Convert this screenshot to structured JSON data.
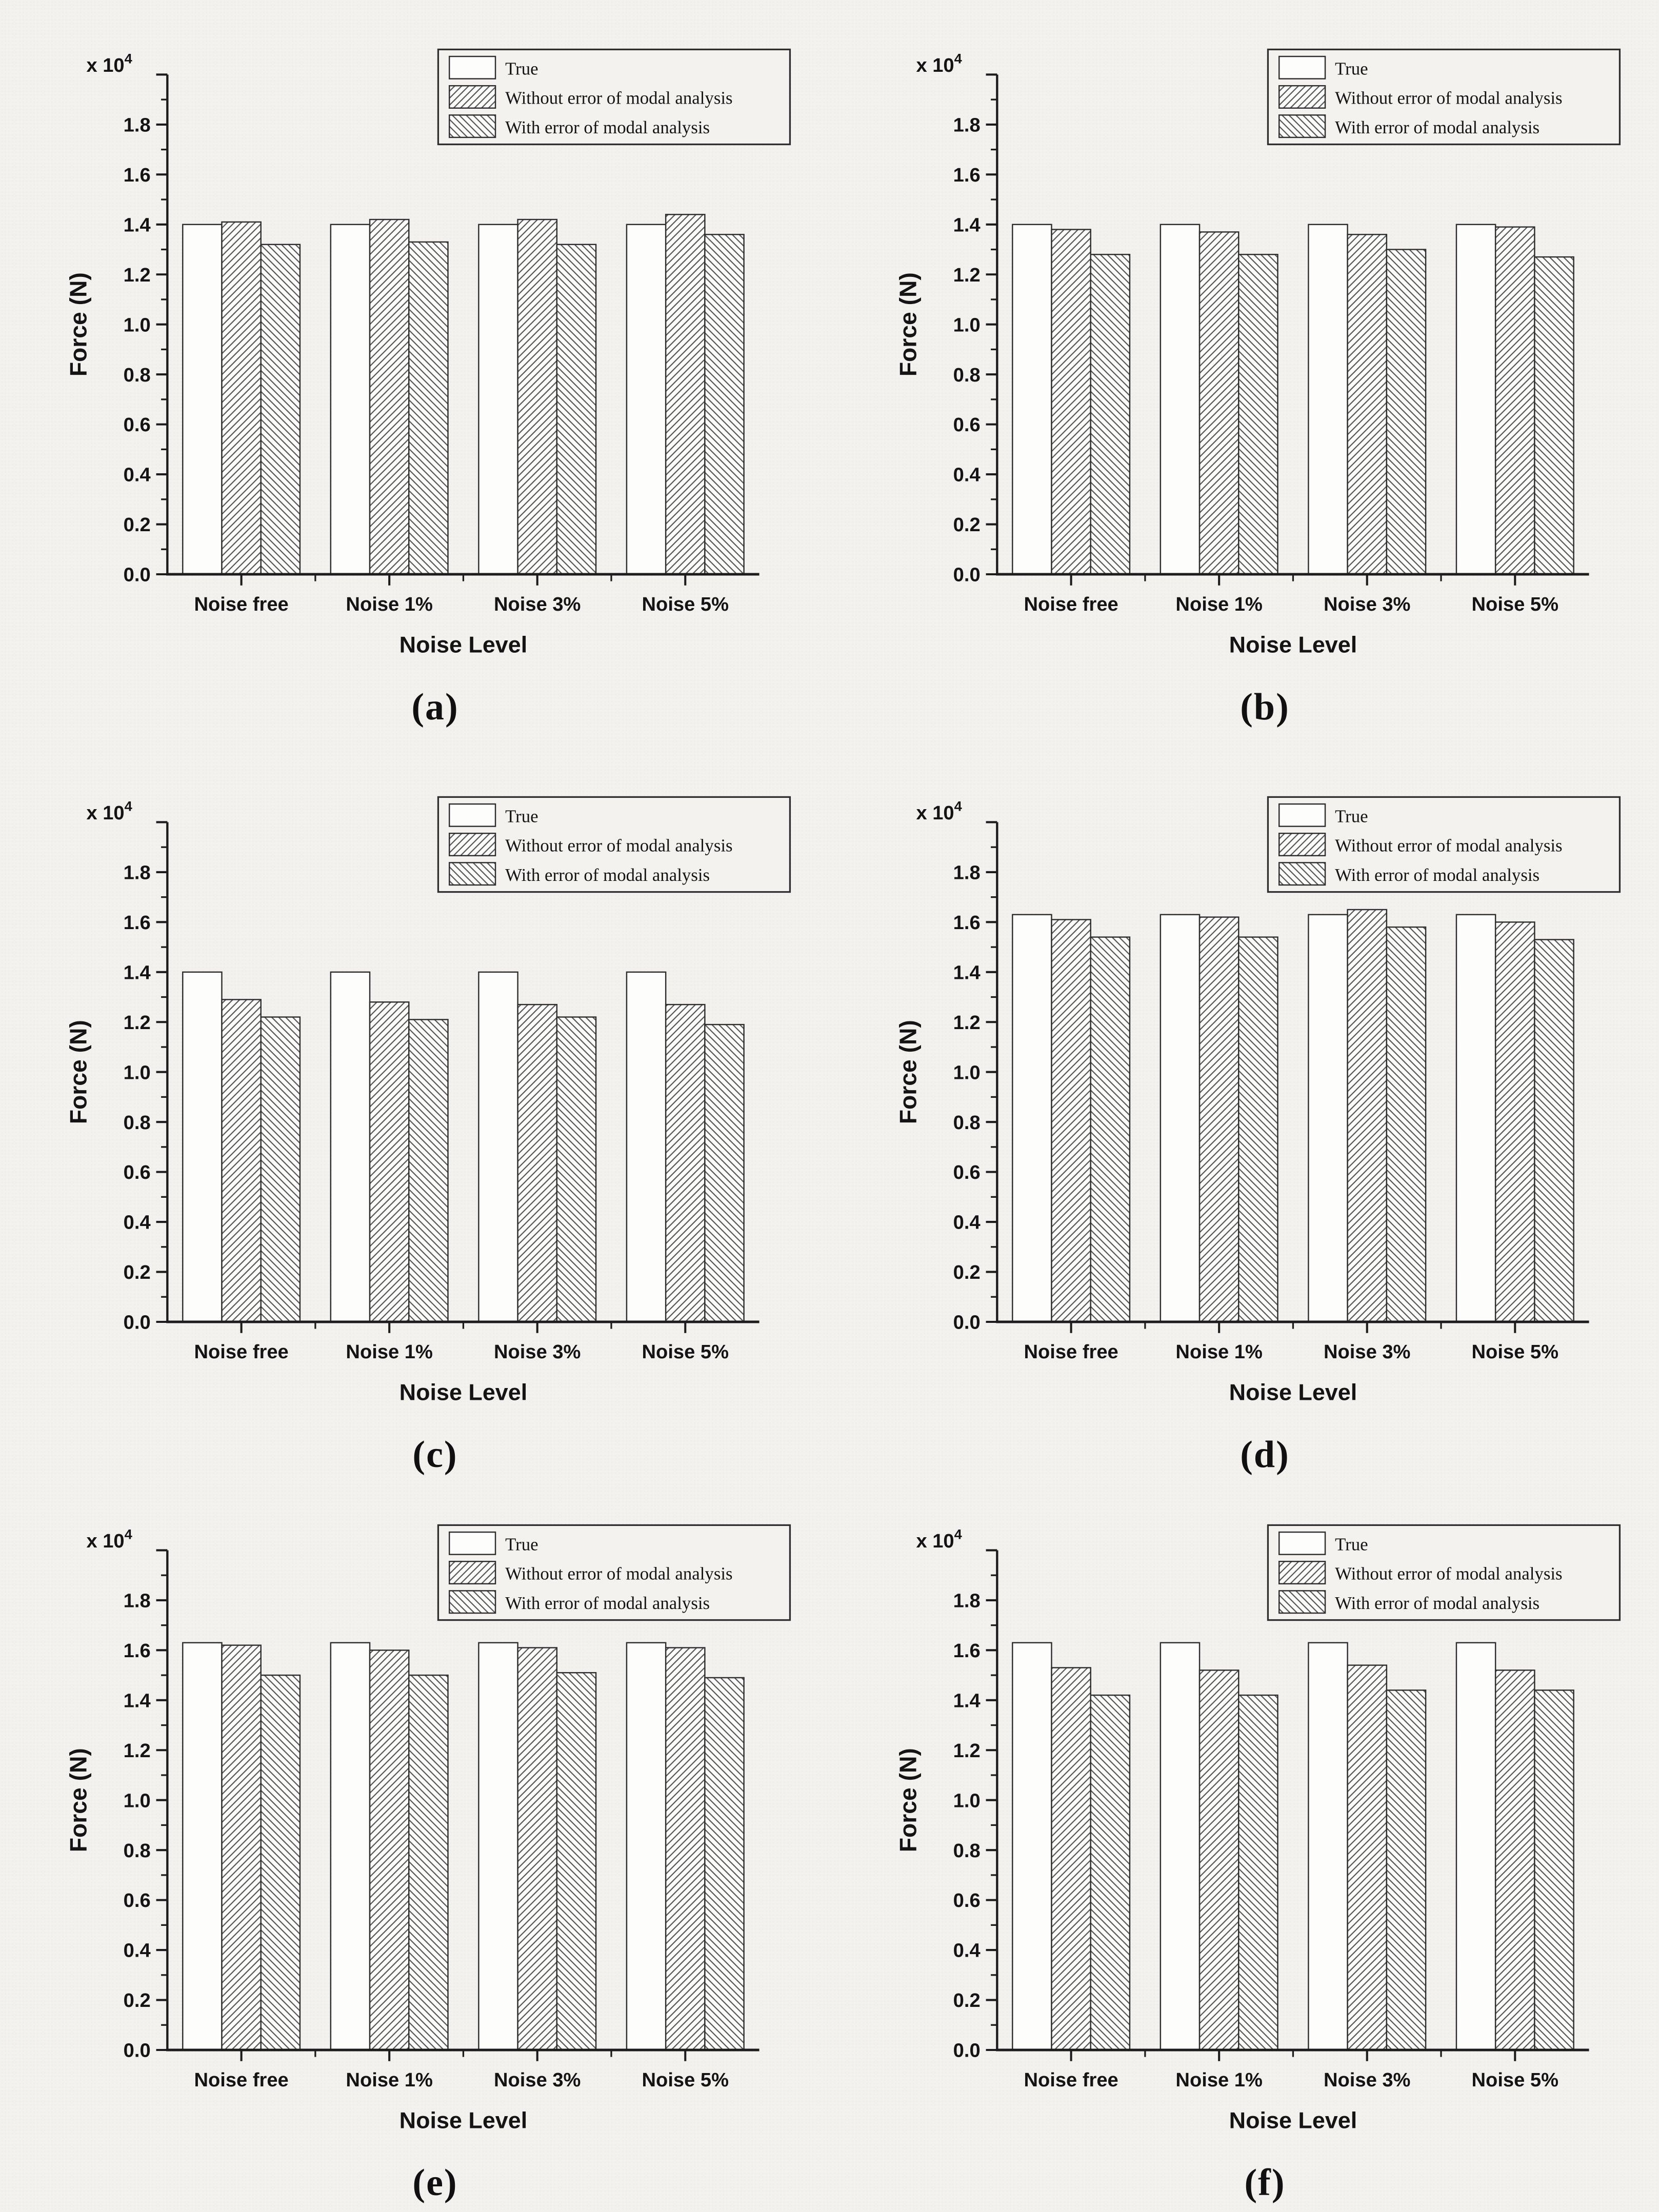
{
  "page": {
    "colors": {
      "background": "#f2f1ee",
      "axis": "#1c1c1c",
      "bar_fill": "#fdfdfc",
      "bar_stroke": "#2e2e2e",
      "hatch": "#555555",
      "legend_fill": "#f3f2ef",
      "text": "#141414"
    }
  },
  "chart_data": [
    {
      "id": "a",
      "caption": "(a)",
      "type": "bar",
      "xlabel": "Noise Level",
      "ylabel": "Force (N)",
      "y_multiplier_label": "x 10",
      "y_multiplier_exponent": "4",
      "categories": [
        "Noise free",
        "Noise 1%",
        "Noise 3%",
        "Noise 5%"
      ],
      "series": [
        {
          "name": "True",
          "hatch": "none",
          "values": [
            1.4,
            1.4,
            1.4,
            1.4
          ]
        },
        {
          "name": "Without error of modal analysis",
          "hatch": "forward",
          "values": [
            1.41,
            1.42,
            1.42,
            1.44
          ]
        },
        {
          "name": "With error of modal analysis",
          "hatch": "backward",
          "values": [
            1.32,
            1.33,
            1.32,
            1.36
          ]
        }
      ],
      "ylim": [
        0,
        2.0
      ],
      "ytick_major": 0.2,
      "ytick_minor": 0.1,
      "ytick_labels": [
        "0.0",
        "0.2",
        "0.4",
        "0.6",
        "0.8",
        "1.0",
        "1.2",
        "1.4",
        "1.6",
        "1.8"
      ],
      "legend_position": "top-right",
      "grid": false
    },
    {
      "id": "b",
      "caption": "(b)",
      "type": "bar",
      "xlabel": "Noise Level",
      "ylabel": "Force (N)",
      "y_multiplier_label": "x 10",
      "y_multiplier_exponent": "4",
      "categories": [
        "Noise free",
        "Noise 1%",
        "Noise 3%",
        "Noise 5%"
      ],
      "series": [
        {
          "name": "True",
          "hatch": "none",
          "values": [
            1.4,
            1.4,
            1.4,
            1.4
          ]
        },
        {
          "name": "Without error of modal analysis",
          "hatch": "forward",
          "values": [
            1.38,
            1.37,
            1.36,
            1.39
          ]
        },
        {
          "name": "With error of modal analysis",
          "hatch": "backward",
          "values": [
            1.28,
            1.28,
            1.3,
            1.27
          ]
        }
      ],
      "ylim": [
        0,
        2.0
      ],
      "ytick_major": 0.2,
      "ytick_minor": 0.1,
      "ytick_labels": [
        "0.0",
        "0.2",
        "0.4",
        "0.6",
        "0.8",
        "1.0",
        "1.2",
        "1.4",
        "1.6",
        "1.8"
      ],
      "legend_position": "top-right",
      "grid": false
    },
    {
      "id": "c",
      "caption": "(c)",
      "type": "bar",
      "xlabel": "Noise Level",
      "ylabel": "Force (N)",
      "y_multiplier_label": "x 10",
      "y_multiplier_exponent": "4",
      "categories": [
        "Noise free",
        "Noise 1%",
        "Noise 3%",
        "Noise 5%"
      ],
      "series": [
        {
          "name": "True",
          "hatch": "none",
          "values": [
            1.4,
            1.4,
            1.4,
            1.4
          ]
        },
        {
          "name": "Without error of modal analysis",
          "hatch": "forward",
          "values": [
            1.29,
            1.28,
            1.27,
            1.27
          ]
        },
        {
          "name": "With error of modal analysis",
          "hatch": "backward",
          "values": [
            1.22,
            1.21,
            1.22,
            1.19
          ]
        }
      ],
      "ylim": [
        0,
        2.0
      ],
      "ytick_major": 0.2,
      "ytick_minor": 0.1,
      "ytick_labels": [
        "0.0",
        "0.2",
        "0.4",
        "0.6",
        "0.8",
        "1.0",
        "1.2",
        "1.4",
        "1.6",
        "1.8"
      ],
      "legend_position": "top-right",
      "grid": false
    },
    {
      "id": "d",
      "caption": "(d)",
      "type": "bar",
      "xlabel": "Noise Level",
      "ylabel": "Force (N)",
      "y_multiplier_label": "x 10",
      "y_multiplier_exponent": "4",
      "categories": [
        "Noise free",
        "Noise 1%",
        "Noise 3%",
        "Noise 5%"
      ],
      "series": [
        {
          "name": "True",
          "hatch": "none",
          "values": [
            1.63,
            1.63,
            1.63,
            1.63
          ]
        },
        {
          "name": "Without error of modal analysis",
          "hatch": "forward",
          "values": [
            1.61,
            1.62,
            1.65,
            1.6
          ]
        },
        {
          "name": "With error of modal analysis",
          "hatch": "backward",
          "values": [
            1.54,
            1.54,
            1.58,
            1.53
          ]
        }
      ],
      "ylim": [
        0,
        2.0
      ],
      "ytick_major": 0.2,
      "ytick_minor": 0.1,
      "ytick_labels": [
        "0.0",
        "0.2",
        "0.4",
        "0.6",
        "0.8",
        "1.0",
        "1.2",
        "1.4",
        "1.6",
        "1.8"
      ],
      "legend_position": "top-right",
      "grid": false
    },
    {
      "id": "e",
      "caption": "(e)",
      "type": "bar",
      "xlabel": "Noise Level",
      "ylabel": "Force (N)",
      "y_multiplier_label": "x 10",
      "y_multiplier_exponent": "4",
      "categories": [
        "Noise free",
        "Noise 1%",
        "Noise 3%",
        "Noise 5%"
      ],
      "series": [
        {
          "name": "True",
          "hatch": "none",
          "values": [
            1.63,
            1.63,
            1.63,
            1.63
          ]
        },
        {
          "name": "Without error of modal analysis",
          "hatch": "forward",
          "values": [
            1.62,
            1.6,
            1.61,
            1.61
          ]
        },
        {
          "name": "With error of modal analysis",
          "hatch": "backward",
          "values": [
            1.5,
            1.5,
            1.51,
            1.49
          ]
        }
      ],
      "ylim": [
        0,
        2.0
      ],
      "ytick_major": 0.2,
      "ytick_minor": 0.1,
      "ytick_labels": [
        "0.0",
        "0.2",
        "0.4",
        "0.6",
        "0.8",
        "1.0",
        "1.2",
        "1.4",
        "1.6",
        "1.8"
      ],
      "legend_position": "top-right",
      "grid": false
    },
    {
      "id": "f",
      "caption": "(f)",
      "type": "bar",
      "xlabel": "Noise Level",
      "ylabel": "Force (N)",
      "y_multiplier_label": "x 10",
      "y_multiplier_exponent": "4",
      "categories": [
        "Noise free",
        "Noise 1%",
        "Noise 3%",
        "Noise 5%"
      ],
      "series": [
        {
          "name": "True",
          "hatch": "none",
          "values": [
            1.63,
            1.63,
            1.63,
            1.63
          ]
        },
        {
          "name": "Without error of modal analysis",
          "hatch": "forward",
          "values": [
            1.53,
            1.52,
            1.54,
            1.52
          ]
        },
        {
          "name": "With error of modal analysis",
          "hatch": "backward",
          "values": [
            1.42,
            1.42,
            1.44,
            1.44
          ]
        }
      ],
      "ylim": [
        0,
        2.0
      ],
      "ytick_major": 0.2,
      "ytick_minor": 0.1,
      "ytick_labels": [
        "0.0",
        "0.2",
        "0.4",
        "0.6",
        "0.8",
        "1.0",
        "1.2",
        "1.4",
        "1.6",
        "1.8"
      ],
      "legend_position": "top-right",
      "grid": false
    }
  ]
}
